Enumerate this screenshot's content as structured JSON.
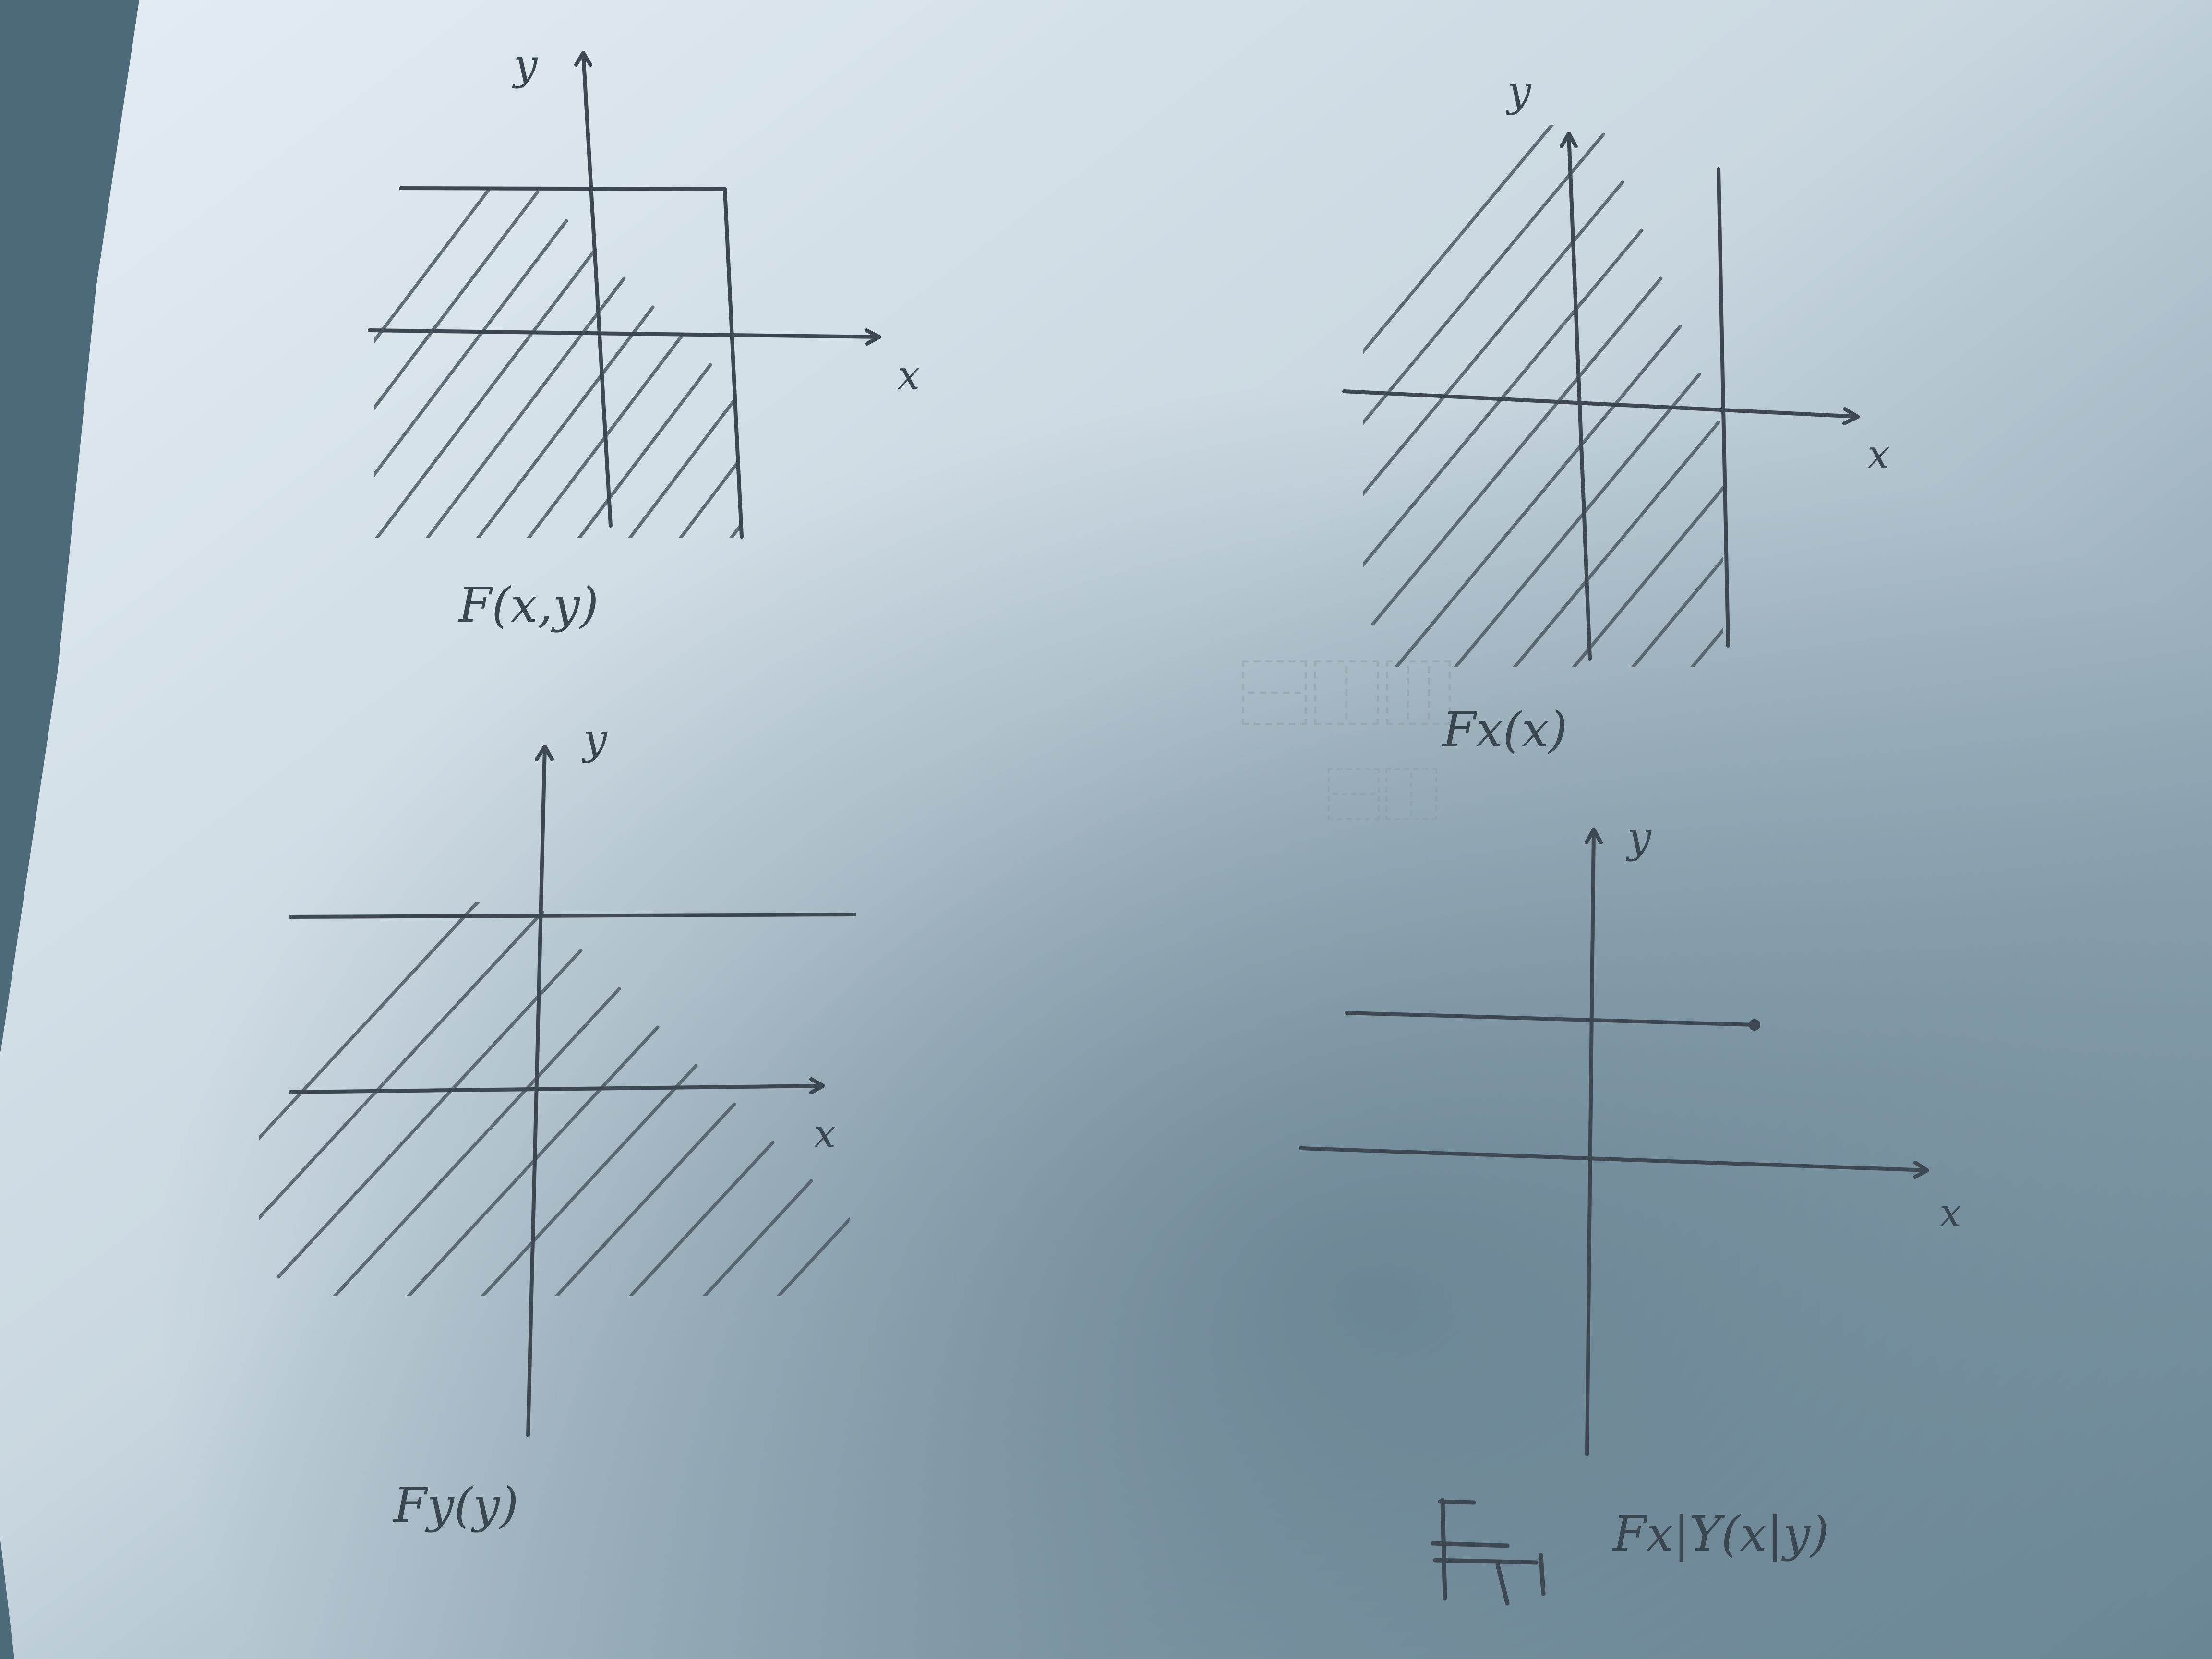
{
  "sketches": {
    "top_left": {
      "caption": "F(x,y)",
      "x_axis_label": "x",
      "y_axis_label": "y"
    },
    "top_right": {
      "caption": "Fx(x)",
      "x_axis_label": "x",
      "y_axis_label": "y"
    },
    "bottom_left": {
      "caption": "Fy(y)",
      "x_axis_label": "x",
      "y_axis_label": "y"
    },
    "bottom_right": {
      "caption": "Fx|Y(x|y)",
      "x_axis_label": "x",
      "y_axis_label": "y"
    }
  },
  "colors": {
    "paper": "#dfe8ef",
    "ink": "#3d4852",
    "shadow": "#5d7a8a"
  }
}
